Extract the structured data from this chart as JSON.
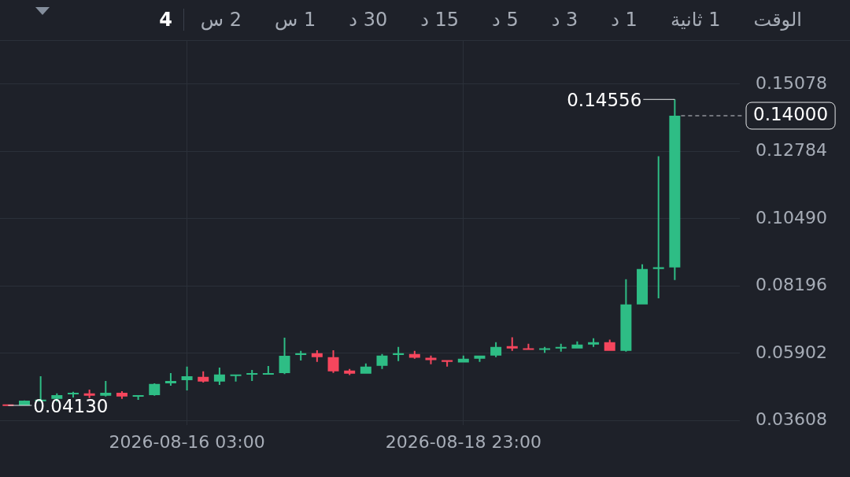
{
  "chart_data": {
    "type": "candlestick",
    "x": [
      "2026-08-14T07:00",
      "2026-08-14T11:00",
      "2026-08-14T15:00",
      "2026-08-14T19:00",
      "2026-08-14T23:00",
      "2026-08-15T03:00",
      "2026-08-15T07:00",
      "2026-08-15T11:00",
      "2026-08-15T15:00",
      "2026-08-15T19:00",
      "2026-08-15T23:00",
      "2026-08-16T03:00",
      "2026-08-16T07:00",
      "2026-08-16T11:00",
      "2026-08-16T15:00",
      "2026-08-16T19:00",
      "2026-08-16T23:00",
      "2026-08-17T03:00",
      "2026-08-17T07:00",
      "2026-08-17T11:00",
      "2026-08-17T15:00",
      "2026-08-17T19:00",
      "2026-08-17T23:00",
      "2026-08-18T03:00",
      "2026-08-18T07:00",
      "2026-08-18T11:00",
      "2026-08-18T15:00",
      "2026-08-18T19:00",
      "2026-08-18T23:00",
      "2026-08-19T03:00",
      "2026-08-19T07:00",
      "2026-08-19T11:00",
      "2026-08-19T15:00",
      "2026-08-19T19:00",
      "2026-08-19T23:00",
      "2026-08-20T03:00",
      "2026-08-20T07:00",
      "2026-08-20T11:00",
      "2026-08-20T15:00",
      "2026-08-20T19:00",
      "2026-08-20T23:00",
      "2026-08-21T03:00"
    ],
    "ohlc": [
      [
        0.0415,
        0.0416,
        0.0413,
        0.0413
      ],
      [
        0.0413,
        0.043,
        0.0413,
        0.0429
      ],
      [
        0.0429,
        0.0512,
        0.0427,
        0.0431
      ],
      [
        0.0435,
        0.0454,
        0.0426,
        0.0448
      ],
      [
        0.0451,
        0.0459,
        0.044,
        0.0456
      ],
      [
        0.0454,
        0.0467,
        0.0438,
        0.0446
      ],
      [
        0.0446,
        0.0496,
        0.0443,
        0.0456
      ],
      [
        0.0456,
        0.0461,
        0.0435,
        0.0443
      ],
      [
        0.0443,
        0.0448,
        0.0432,
        0.0448
      ],
      [
        0.0448,
        0.0488,
        0.0446,
        0.0486
      ],
      [
        0.0488,
        0.0523,
        0.048,
        0.0496
      ],
      [
        0.0499,
        0.0545,
        0.0464,
        0.0512
      ],
      [
        0.051,
        0.0529,
        0.0491,
        0.0494
      ],
      [
        0.0494,
        0.0542,
        0.0483,
        0.0518
      ],
      [
        0.0513,
        0.0518,
        0.0494,
        0.0518
      ],
      [
        0.0518,
        0.0534,
        0.0496,
        0.0523
      ],
      [
        0.0518,
        0.0547,
        0.0518,
        0.0523
      ],
      [
        0.0523,
        0.0644,
        0.052,
        0.0582
      ],
      [
        0.0585,
        0.0599,
        0.0566,
        0.0591
      ],
      [
        0.0591,
        0.0601,
        0.0561,
        0.0577
      ],
      [
        0.0577,
        0.0601,
        0.0524,
        0.0529
      ],
      [
        0.0532,
        0.0537,
        0.0516,
        0.0521
      ],
      [
        0.0521,
        0.0556,
        0.0521,
        0.0545
      ],
      [
        0.0548,
        0.0588,
        0.0537,
        0.0583
      ],
      [
        0.0585,
        0.0612,
        0.0564,
        0.0591
      ],
      [
        0.0588,
        0.0599,
        0.0572,
        0.0575
      ],
      [
        0.0575,
        0.0583,
        0.0553,
        0.0567
      ],
      [
        0.0567,
        0.0567,
        0.0545,
        0.0561
      ],
      [
        0.0559,
        0.0583,
        0.0559,
        0.0572
      ],
      [
        0.0572,
        0.0583,
        0.0561,
        0.0583
      ],
      [
        0.0583,
        0.0628,
        0.0577,
        0.0612
      ],
      [
        0.0615,
        0.0645,
        0.0599,
        0.0607
      ],
      [
        0.0607,
        0.0623,
        0.0602,
        0.0602
      ],
      [
        0.0602,
        0.0612,
        0.0592,
        0.0607
      ],
      [
        0.0607,
        0.0623,
        0.0596,
        0.0612
      ],
      [
        0.0607,
        0.0631,
        0.0607,
        0.062
      ],
      [
        0.062,
        0.0642,
        0.0612,
        0.0628
      ],
      [
        0.0628,
        0.0637,
        0.0599,
        0.0599
      ],
      [
        0.0599,
        0.0843,
        0.0596,
        0.0757
      ],
      [
        0.0757,
        0.0894,
        0.0757,
        0.0878
      ],
      [
        0.0878,
        0.1262,
        0.0778,
        0.0884
      ],
      [
        0.0883,
        0.14556,
        0.084,
        0.14
      ]
    ],
    "colors": [
      "#f6465d",
      "#2ebd85",
      "#2ebd85",
      "#2ebd85",
      "#2ebd85",
      "#f6465d",
      "#2ebd85",
      "#f6465d",
      "#2ebd85",
      "#2ebd85",
      "#2ebd85",
      "#2ebd85",
      "#f6465d",
      "#2ebd85",
      "#2ebd85",
      "#2ebd85",
      "#2ebd85",
      "#2ebd85",
      "#2ebd85",
      "#f6465d",
      "#f6465d",
      "#f6465d",
      "#2ebd85",
      "#2ebd85",
      "#2ebd85",
      "#f6465d",
      "#f6465d",
      "#f6465d",
      "#2ebd85",
      "#2ebd85",
      "#2ebd85",
      "#f6465d",
      "#f6465d",
      "#2ebd85",
      "#2ebd85",
      "#2ebd85",
      "#2ebd85",
      "#f6465d",
      "#2ebd85",
      "#2ebd85",
      "#2ebd85",
      "#2ebd85"
    ],
    "xlim": [
      "2026-08-14T05:00",
      "2026-08-21T19:00"
    ],
    "xticks": [
      {
        "value": "2026-08-16T03:00",
        "label": "2026-08-16 03:00"
      },
      {
        "value": "2026-08-18T23:00",
        "label": "2026-08-18 23:00"
      }
    ],
    "ylim": [
      0.0346,
      0.1657
    ],
    "yticks": [
      0.03608,
      0.05902,
      0.08196,
      {
        "value": 0.1049,
        "label": "0.10490"
      },
      0.12784,
      0.15078
    ],
    "grid": true,
    "ref_lines": [
      {
        "axis": "y",
        "value": 0.14,
        "label": "0.14000",
        "line_style": "dashed"
      }
    ],
    "annotations": [
      {
        "text": "0.14556",
        "x": "2026-08-21T03:00",
        "y": 0.14556
      },
      {
        "text": "0.04130",
        "x": "2026-08-14T07:00",
        "y": 0.0413
      },
      "الوقت",
      "1 ثانية",
      "1 د",
      "3 د",
      "5 د",
      "15 د",
      "30 د",
      "1 س",
      "2 س",
      "4"
    ]
  }
}
